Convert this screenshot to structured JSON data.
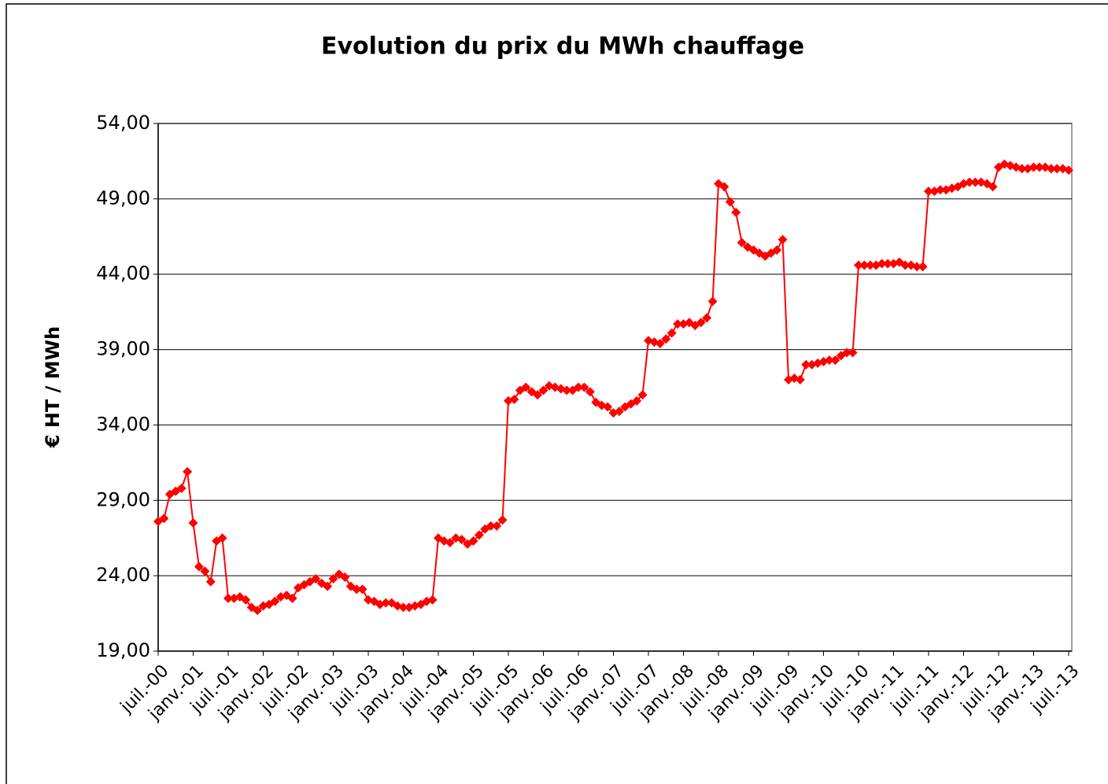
{
  "chart_data": {
    "type": "line",
    "title": "Evolution du prix du MWh chauffage",
    "y_label": "€ HT / MWh",
    "categories": [
      "juil.-00",
      null,
      null,
      null,
      null,
      null,
      "janv.-01",
      null,
      null,
      null,
      null,
      null,
      "juil.-01",
      null,
      null,
      null,
      null,
      null,
      "janv.-02",
      null,
      null,
      null,
      null,
      null,
      "juil.-02",
      null,
      null,
      null,
      null,
      null,
      "janv.-03",
      null,
      null,
      null,
      null,
      null,
      "juil.-03",
      null,
      null,
      null,
      null,
      null,
      "janv.-04",
      null,
      null,
      null,
      null,
      null,
      "juil.-04",
      null,
      null,
      null,
      null,
      null,
      "janv.-05",
      null,
      null,
      null,
      null,
      null,
      "juil.-05",
      null,
      null,
      null,
      null,
      null,
      "janv.-06",
      null,
      null,
      null,
      null,
      null,
      "juil.-06",
      null,
      null,
      null,
      null,
      null,
      "janv.-07",
      null,
      null,
      null,
      null,
      null,
      "juil.-07",
      null,
      null,
      null,
      null,
      null,
      "janv.-08",
      null,
      null,
      null,
      null,
      null,
      "juil.-08",
      null,
      null,
      null,
      null,
      null,
      "janv.-09",
      null,
      null,
      null,
      null,
      null,
      "juil.-09",
      null,
      null,
      null,
      null,
      null,
      "janv.-10",
      null,
      null,
      null,
      null,
      null,
      "juil.-10",
      null,
      null,
      null,
      null,
      null,
      "janv.-11",
      null,
      null,
      null,
      null,
      null,
      "juil.-11",
      null,
      null,
      null,
      null,
      null,
      "janv.-12",
      null,
      null,
      null,
      null,
      null,
      "juil.-12",
      null,
      null,
      null,
      null,
      null,
      "janv.-13",
      null,
      null,
      null,
      null,
      null,
      "juil.-13"
    ],
    "series": [
      {
        "color": "#ff0000",
        "values": [
          27.6,
          27.8,
          29.4,
          29.6,
          29.8,
          30.9,
          27.5,
          24.6,
          24.3,
          23.6,
          26.3,
          26.5,
          22.5,
          22.5,
          22.6,
          22.4,
          21.9,
          21.7,
          22.0,
          22.1,
          22.3,
          22.6,
          22.7,
          22.5,
          23.2,
          23.4,
          23.6,
          23.8,
          23.5,
          23.3,
          23.8,
          24.1,
          23.9,
          23.3,
          23.1,
          23.1,
          22.4,
          22.3,
          22.1,
          22.2,
          22.2,
          22.0,
          21.9,
          21.9,
          22.0,
          22.1,
          22.3,
          22.4,
          26.5,
          26.3,
          26.2,
          26.5,
          26.4,
          26.1,
          26.3,
          26.7,
          27.1,
          27.3,
          27.3,
          27.7,
          35.6,
          35.7,
          36.3,
          36.5,
          36.2,
          36.0,
          36.3,
          36.6,
          36.5,
          36.4,
          36.3,
          36.3,
          36.5,
          36.5,
          36.2,
          35.5,
          35.3,
          35.2,
          34.8,
          34.9,
          35.2,
          35.4,
          35.6,
          36.0,
          39.6,
          39.5,
          39.4,
          39.7,
          40.1,
          40.7,
          40.7,
          40.8,
          40.6,
          40.8,
          41.1,
          42.2,
          50.0,
          49.8,
          48.8,
          48.1,
          46.1,
          45.8,
          45.6,
          45.4,
          45.2,
          45.4,
          45.6,
          46.3,
          37.0,
          37.1,
          37.0,
          38.0,
          38.0,
          38.1,
          38.2,
          38.3,
          38.3,
          38.6,
          38.8,
          38.8,
          44.6,
          44.6,
          44.6,
          44.6,
          44.7,
          44.7,
          44.7,
          44.8,
          44.6,
          44.6,
          44.5,
          44.5,
          49.5,
          49.5,
          49.6,
          49.6,
          49.7,
          49.8,
          50.0,
          50.1,
          50.1,
          50.1,
          50.0,
          49.8,
          51.1,
          51.3,
          51.2,
          51.1,
          51.0,
          51.0,
          51.1,
          51.1,
          51.1,
          51.0,
          51.0,
          51.0,
          50.9
        ]
      }
    ],
    "ylim": [
      19,
      54
    ],
    "yticks": [
      {
        "value": 19,
        "label": "19,00"
      },
      {
        "value": 24,
        "label": "24,00"
      },
      {
        "value": 29,
        "label": "29,00"
      },
      {
        "value": 34,
        "label": "34,00"
      },
      {
        "value": 39,
        "label": "39,00"
      },
      {
        "value": 44,
        "label": "44,00"
      },
      {
        "value": 49,
        "label": "49,00"
      },
      {
        "value": 54,
        "label": "54,00"
      }
    ],
    "grid": true
  }
}
